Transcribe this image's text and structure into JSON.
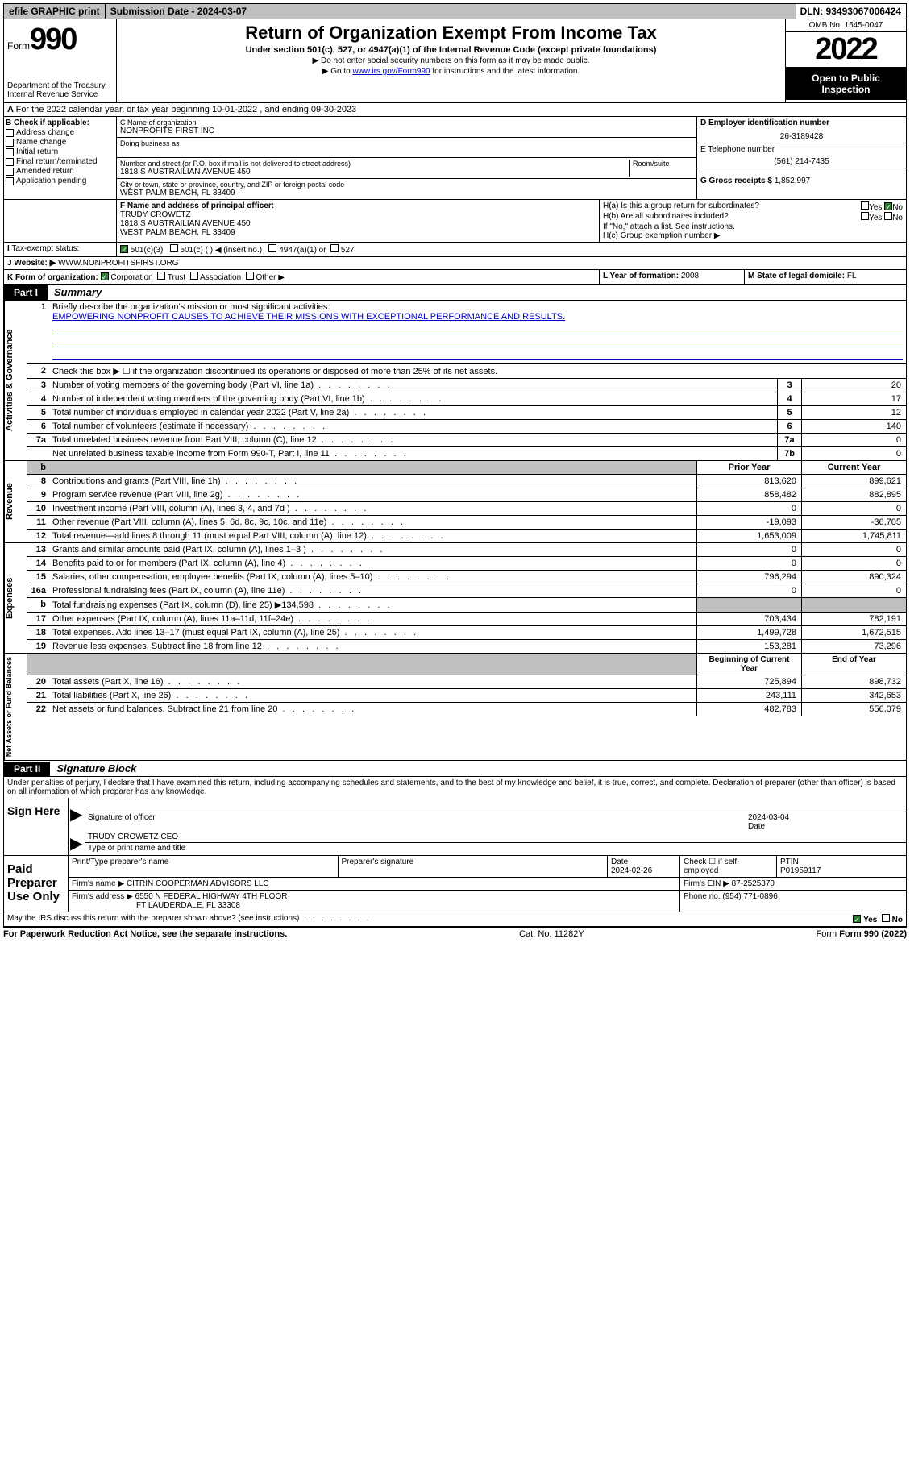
{
  "top": {
    "efile": "efile GRAPHIC print",
    "submission": "Submission Date - 2024-03-07",
    "dln": "DLN: 93493067006424"
  },
  "header": {
    "form": "Form",
    "num": "990",
    "dept": "Department of the Treasury Internal Revenue Service",
    "title": "Return of Organization Exempt From Income Tax",
    "sub": "Under section 501(c), 527, or 4947(a)(1) of the Internal Revenue Code (except private foundations)",
    "note1": "▶ Do not enter social security numbers on this form as it may be made public.",
    "note2_pre": "▶ Go to ",
    "note2_link": "www.irs.gov/Form990",
    "note2_post": " for instructions and the latest information.",
    "omb": "OMB No. 1545-0047",
    "year": "2022",
    "open": "Open to Public Inspection"
  },
  "rowA": "For the 2022 calendar year, or tax year beginning 10-01-2022    , and ending 09-30-2023",
  "boxB": {
    "title": "B Check if applicable:",
    "items": [
      "Address change",
      "Name change",
      "Initial return",
      "Final return/terminated",
      "Amended return",
      "Application pending"
    ]
  },
  "boxC": {
    "label_name": "C Name of organization",
    "name": "NONPROFITS FIRST INC",
    "dba_label": "Doing business as",
    "street_label": "Number and street (or P.O. box if mail is not delivered to street address)",
    "room_label": "Room/suite",
    "street": "1818 S AUSTRAILIAN AVENUE 450",
    "city_label": "City or town, state or province, country, and ZIP or foreign postal code",
    "city": "WEST PALM BEACH, FL  33409"
  },
  "boxD": {
    "label": "D Employer identification number",
    "ein": "26-3189428"
  },
  "boxE": {
    "label": "E Telephone number",
    "phone": "(561) 214-7435"
  },
  "boxG": {
    "label": "G Gross receipts $",
    "val": "1,852,997"
  },
  "boxF": {
    "label": "F  Name and address of principal officer:",
    "name": "TRUDY CROWETZ",
    "addr1": "1818 S AUSTRAILIAN AVENUE 450",
    "addr2": "WEST PALM BEACH, FL  33409"
  },
  "boxH": {
    "a": "H(a)  Is this a group return for subordinates?",
    "b": "H(b)  Are all subordinates included?",
    "bnote": "If \"No,\" attach a list. See instructions.",
    "c": "H(c)  Group exemption number ▶",
    "yes": "Yes",
    "no": "No"
  },
  "rowI": {
    "label": "Tax-exempt status:",
    "o1": "501(c)(3)",
    "o2": "501(c) (  ) ◀ (insert no.)",
    "o3": "4947(a)(1) or",
    "o4": "527"
  },
  "rowJ": {
    "label": "Website: ▶",
    "val": "WWW.NONPROFITSFIRST.ORG"
  },
  "rowK": {
    "label": "K Form of organization:",
    "opts": [
      "Corporation",
      "Trust",
      "Association",
      "Other ▶"
    ]
  },
  "rowL": {
    "label": "L Year of formation:",
    "val": "2008"
  },
  "rowM": {
    "label": "M State of legal domicile:",
    "val": "FL"
  },
  "part1": {
    "label": "Part I",
    "title": "Summary"
  },
  "summary": {
    "q1_label": "Briefly describe the organization's mission or most significant activities:",
    "q1_text": "EMPOWERING NONPROFIT CAUSES TO ACHIEVE THEIR MISSIONS WITH EXCEPTIONAL PERFORMANCE AND RESULTS.",
    "q2": "Check this box ▶ ☐  if the organization discontinued its operations or disposed of more than 25% of its net assets.",
    "lines_gov": [
      {
        "n": "3",
        "t": "Number of voting members of the governing body (Part VI, line 1a)",
        "c": "3",
        "v": "20"
      },
      {
        "n": "4",
        "t": "Number of independent voting members of the governing body (Part VI, line 1b)",
        "c": "4",
        "v": "17"
      },
      {
        "n": "5",
        "t": "Total number of individuals employed in calendar year 2022 (Part V, line 2a)",
        "c": "5",
        "v": "12"
      },
      {
        "n": "6",
        "t": "Total number of volunteers (estimate if necessary)",
        "c": "6",
        "v": "140"
      },
      {
        "n": "7a",
        "t": "Total unrelated business revenue from Part VIII, column (C), line 12",
        "c": "7a",
        "v": "0"
      },
      {
        "n": "",
        "t": "Net unrelated business taxable income from Form 990-T, Part I, line 11",
        "c": "7b",
        "v": "0"
      }
    ],
    "headers": {
      "prior": "Prior Year",
      "current": "Current Year",
      "boy": "Beginning of Current Year",
      "eoy": "End of Year"
    },
    "rev": [
      {
        "n": "8",
        "t": "Contributions and grants (Part VIII, line 1h)",
        "p": "813,620",
        "c": "899,621"
      },
      {
        "n": "9",
        "t": "Program service revenue (Part VIII, line 2g)",
        "p": "858,482",
        "c": "882,895"
      },
      {
        "n": "10",
        "t": "Investment income (Part VIII, column (A), lines 3, 4, and 7d )",
        "p": "0",
        "c": "0"
      },
      {
        "n": "11",
        "t": "Other revenue (Part VIII, column (A), lines 5, 6d, 8c, 9c, 10c, and 11e)",
        "p": "-19,093",
        "c": "-36,705"
      },
      {
        "n": "12",
        "t": "Total revenue—add lines 8 through 11 (must equal Part VIII, column (A), line 12)",
        "p": "1,653,009",
        "c": "1,745,811"
      }
    ],
    "exp": [
      {
        "n": "13",
        "t": "Grants and similar amounts paid (Part IX, column (A), lines 1–3 )",
        "p": "0",
        "c": "0"
      },
      {
        "n": "14",
        "t": "Benefits paid to or for members (Part IX, column (A), line 4)",
        "p": "0",
        "c": "0"
      },
      {
        "n": "15",
        "t": "Salaries, other compensation, employee benefits (Part IX, column (A), lines 5–10)",
        "p": "796,294",
        "c": "890,324"
      },
      {
        "n": "16a",
        "t": "Professional fundraising fees (Part IX, column (A), line 11e)",
        "p": "0",
        "c": "0"
      },
      {
        "n": "b",
        "t": "Total fundraising expenses (Part IX, column (D), line 25) ▶134,598",
        "p": "",
        "c": ""
      },
      {
        "n": "17",
        "t": "Other expenses (Part IX, column (A), lines 11a–11d, 11f–24e)",
        "p": "703,434",
        "c": "782,191"
      },
      {
        "n": "18",
        "t": "Total expenses. Add lines 13–17 (must equal Part IX, column (A), line 25)",
        "p": "1,499,728",
        "c": "1,672,515"
      },
      {
        "n": "19",
        "t": "Revenue less expenses. Subtract line 18 from line 12",
        "p": "153,281",
        "c": "73,296"
      }
    ],
    "net": [
      {
        "n": "20",
        "t": "Total assets (Part X, line 16)",
        "p": "725,894",
        "c": "898,732"
      },
      {
        "n": "21",
        "t": "Total liabilities (Part X, line 26)",
        "p": "243,111",
        "c": "342,653"
      },
      {
        "n": "22",
        "t": "Net assets or fund balances. Subtract line 21 from line 20",
        "p": "482,783",
        "c": "556,079"
      }
    ],
    "vlabels": {
      "gov": "Activities & Governance",
      "rev": "Revenue",
      "exp": "Expenses",
      "net": "Net Assets or Fund Balances"
    }
  },
  "part2": {
    "label": "Part II",
    "title": "Signature Block"
  },
  "sig": {
    "perjury": "Under penalties of perjury, I declare that I have examined this return, including accompanying schedules and statements, and to the best of my knowledge and belief, it is true, correct, and complete. Declaration of preparer (other than officer) is based on all information of which preparer has any knowledge.",
    "sign_here": "Sign Here",
    "sig_officer": "Signature of officer",
    "date": "Date",
    "date_val": "2024-03-04",
    "name_title": "TRUDY CROWETZ  CEO",
    "type_name": "Type or print name and title"
  },
  "prep": {
    "paid": "Paid Preparer Use Only",
    "h1": "Print/Type preparer's name",
    "h2": "Preparer's signature",
    "h3": "Date",
    "h3v": "2024-02-26",
    "h4": "Check ☐ if self-employed",
    "h5": "PTIN",
    "h5v": "P01959117",
    "firm_name_l": "Firm's name    ▶",
    "firm_name": "CITRIN COOPERMAN ADVISORS LLC",
    "firm_ein_l": "Firm's EIN ▶",
    "firm_ein": "87-2525370",
    "firm_addr_l": "Firm's address ▶",
    "firm_addr1": "6550 N FEDERAL HIGHWAY 4TH FLOOR",
    "firm_addr2": "FT LAUDERDALE, FL  33308",
    "phone_l": "Phone no.",
    "phone": "(954) 771-0896"
  },
  "bottom": {
    "discuss": "May the IRS discuss this return with the preparer shown above? (see instructions)",
    "yes": "Yes",
    "no": "No",
    "paperwork": "For Paperwork Reduction Act Notice, see the separate instructions.",
    "cat": "Cat. No. 11282Y",
    "form": "Form 990 (2022)"
  }
}
